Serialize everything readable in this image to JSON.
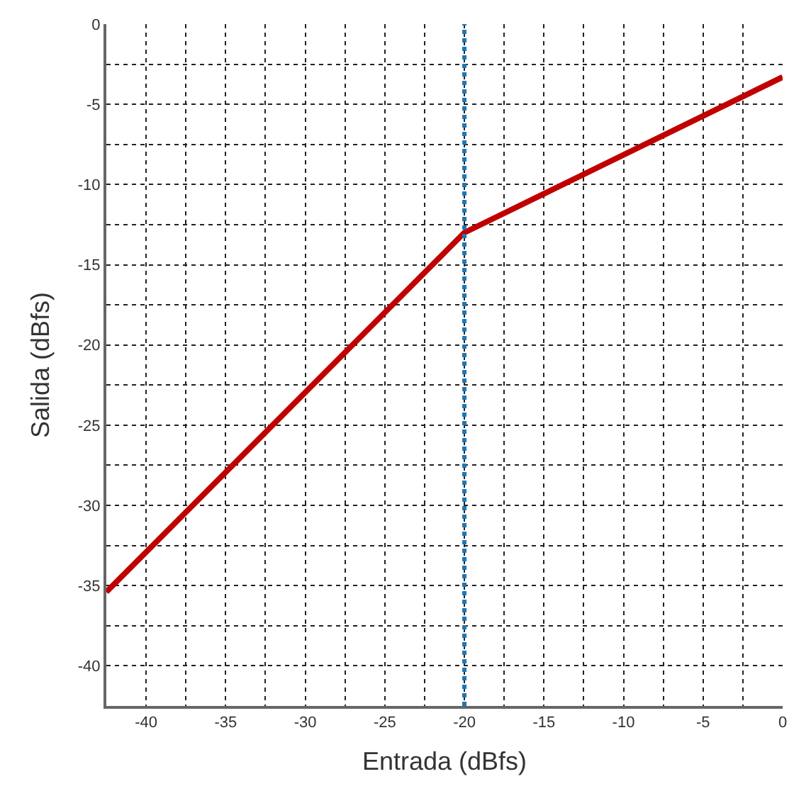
{
  "chart_data": {
    "type": "line",
    "xlabel": "Entrada (dBfs)",
    "ylabel": "Salida (dBfs)",
    "x": [
      -42.5,
      -20,
      0
    ],
    "series": [
      {
        "color": "#c00000",
        "values": [
          -35.4,
          -13,
          -3.3
        ]
      }
    ],
    "xlim": [
      -42.5,
      0
    ],
    "ylim": [
      -42.5,
      0
    ],
    "xticks": [
      {
        "value": -42.5,
        "label": null
      },
      -40,
      {
        "value": -37.5,
        "label": null
      },
      -35,
      {
        "value": -32.5,
        "label": null
      },
      -30,
      {
        "value": -27.5,
        "label": null
      },
      -25,
      {
        "value": -22.5,
        "label": null
      },
      -20,
      {
        "value": -17.5,
        "label": null
      },
      -15,
      {
        "value": -12.5,
        "label": null
      },
      -10,
      {
        "value": -7.5,
        "label": null
      },
      -5,
      {
        "value": -2.5,
        "label": null
      },
      0
    ],
    "yticks": [
      {
        "value": -42.5,
        "label": null
      },
      -40,
      {
        "value": -37.5,
        "label": null
      },
      -35,
      {
        "value": -32.5,
        "label": null
      },
      -30,
      {
        "value": -27.5,
        "label": null
      },
      -25,
      {
        "value": -22.5,
        "label": null
      },
      -20,
      {
        "value": -17.5,
        "label": null
      },
      -15,
      {
        "value": -12.5,
        "label": null
      },
      -10,
      {
        "value": -7.5,
        "label": null
      },
      -5,
      {
        "value": -2.5,
        "label": null
      },
      0
    ],
    "ref_lines": [
      {
        "axis": "x",
        "value": -20,
        "label": null,
        "color": "#1f77b4",
        "line_style": "dotted"
      }
    ],
    "grid": true,
    "line_style": "solid",
    "marker": "none"
  }
}
